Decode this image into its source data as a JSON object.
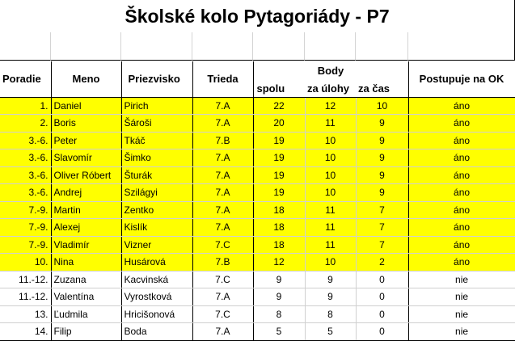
{
  "title": "Školské kolo Pytagoriády - P7",
  "headers": {
    "rank": "Poradie",
    "first_name": "Meno",
    "last_name": "Priezvisko",
    "class": "Trieda",
    "points": "Body",
    "total": "spolu",
    "tasks": "za úlohy",
    "time": "za čas",
    "advances": "Postupuje na OK"
  },
  "rows": [
    {
      "rank": "1.",
      "first_name": "Daniel",
      "last_name": "Pirich",
      "class": "7.A",
      "total": "22",
      "tasks": "12",
      "time": "10",
      "advances": "áno",
      "highlight": true
    },
    {
      "rank": "2.",
      "first_name": "Boris",
      "last_name": "Šároši",
      "class": "7.A",
      "total": "20",
      "tasks": "11",
      "time": "9",
      "advances": "áno",
      "highlight": true
    },
    {
      "rank": "3.-6.",
      "first_name": "Peter",
      "last_name": "Tkáč",
      "class": "7.B",
      "total": "19",
      "tasks": "10",
      "time": "9",
      "advances": "áno",
      "highlight": true
    },
    {
      "rank": "3.-6.",
      "first_name": "Slavomír",
      "last_name": "Šimko",
      "class": "7.A",
      "total": "19",
      "tasks": "10",
      "time": "9",
      "advances": "áno",
      "highlight": true
    },
    {
      "rank": "3.-6.",
      "first_name": "Oliver Róbert",
      "last_name": "Šturák",
      "class": "7.A",
      "total": "19",
      "tasks": "10",
      "time": "9",
      "advances": "áno",
      "highlight": true
    },
    {
      "rank": "3.-6.",
      "first_name": "Andrej",
      "last_name": "Szilágyi",
      "class": "7.A",
      "total": "19",
      "tasks": "10",
      "time": "9",
      "advances": "áno",
      "highlight": true
    },
    {
      "rank": "7.-9.",
      "first_name": "Martin",
      "last_name": "Zentko",
      "class": "7.A",
      "total": "18",
      "tasks": "11",
      "time": "7",
      "advances": "áno",
      "highlight": true
    },
    {
      "rank": "7.-9.",
      "first_name": "Alexej",
      "last_name": "Kislík",
      "class": "7.A",
      "total": "18",
      "tasks": "11",
      "time": "7",
      "advances": "áno",
      "highlight": true
    },
    {
      "rank": "7.-9.",
      "first_name": "Vladimír",
      "last_name": "Vizner",
      "class": "7.C",
      "total": "18",
      "tasks": "11",
      "time": "7",
      "advances": "áno",
      "highlight": true
    },
    {
      "rank": "10.",
      "first_name": "Nina",
      "last_name": "Husárová",
      "class": "7.B",
      "total": "12",
      "tasks": "10",
      "time": "2",
      "advances": "áno",
      "highlight": true
    },
    {
      "rank": "11.-12.",
      "first_name": "Zuzana",
      "last_name": "Kacvinská",
      "class": "7.C",
      "total": "9",
      "tasks": "9",
      "time": "0",
      "advances": "nie",
      "highlight": false
    },
    {
      "rank": "11.-12.",
      "first_name": "Valentína",
      "last_name": "Vyrostková",
      "class": "7.A",
      "total": "9",
      "tasks": "9",
      "time": "0",
      "advances": "nie",
      "highlight": false
    },
    {
      "rank": "13.",
      "first_name": "Ľudmila",
      "last_name": "Hricišonová",
      "class": "7.C",
      "total": "8",
      "tasks": "8",
      "time": "0",
      "advances": "nie",
      "highlight": false
    },
    {
      "rank": "14.",
      "first_name": "Filip",
      "last_name": "Boda",
      "class": "7.A",
      "total": "5",
      "tasks": "5",
      "time": "0",
      "advances": "nie",
      "highlight": false
    }
  ]
}
